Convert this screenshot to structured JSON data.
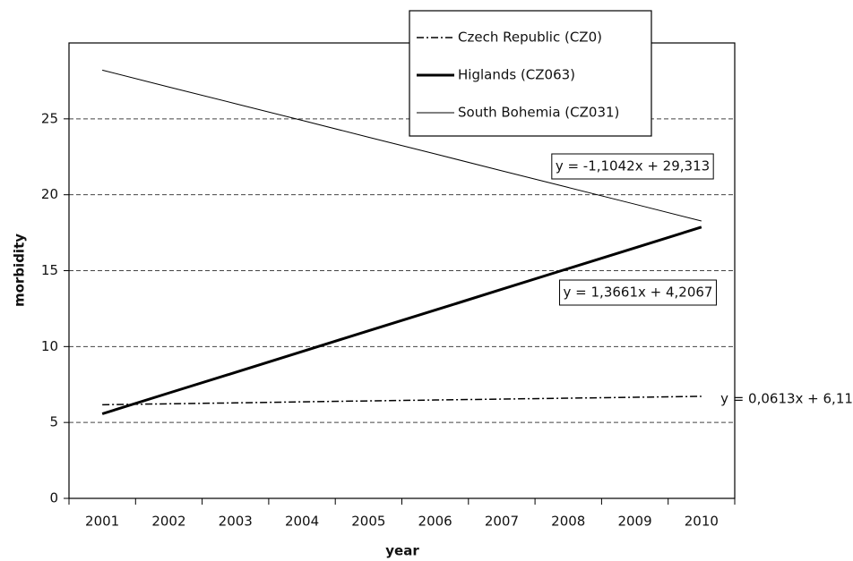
{
  "chart_data": {
    "type": "line",
    "xlabel": "year",
    "ylabel": "morbidity",
    "categories": [
      "2001",
      "2002",
      "2003",
      "2004",
      "2005",
      "2006",
      "2007",
      "2008",
      "2009",
      "2010"
    ],
    "series": [
      {
        "name": "Czech Republic (CZ0)",
        "color": "#000000",
        "style": "dashdot",
        "width": 1.5,
        "values": [
          6.17,
          6.23,
          6.29,
          6.36,
          6.42,
          6.48,
          6.54,
          6.6,
          6.66,
          6.72
        ]
      },
      {
        "name": "Higlands (CZ063)",
        "color": "#000000",
        "style": "solid",
        "width": 3,
        "values": [
          5.57,
          6.94,
          8.3,
          9.67,
          11.04,
          12.4,
          13.77,
          15.14,
          16.5,
          17.87
        ]
      },
      {
        "name": "South Bohemia (CZ031)",
        "color": "#000000",
        "style": "solid",
        "width": 1,
        "values": [
          28.21,
          27.1,
          26.0,
          24.9,
          23.79,
          22.69,
          21.58,
          20.48,
          19.38,
          18.27
        ]
      }
    ],
    "annotations": [
      "y = -1,1042x + 29,313",
      "y = 1,3661x + 4,2067",
      "y = 0,0613x + 6,11"
    ],
    "ylim": [
      0,
      30
    ],
    "yticks": [
      0,
      5,
      10,
      15,
      20,
      25
    ],
    "grid": true,
    "legend": "top"
  }
}
